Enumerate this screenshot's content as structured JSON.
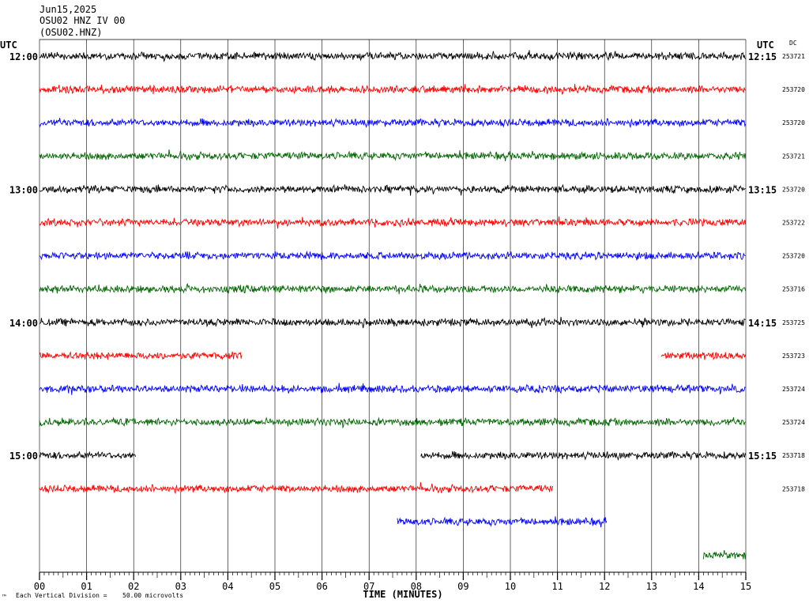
{
  "header": {
    "date": "Jun15,2025",
    "station": "OSU02 HNZ IV 00",
    "channel": "(OSU02.HNZ)"
  },
  "labels": {
    "utc_left": "UTC",
    "utc_right": "UTC",
    "dc": "DC",
    "time_axis": "TIME (MINUTES)",
    "division": "Each Vertical Division =",
    "division_value": "50.00 microvolts",
    "corner_mark": "™"
  },
  "colors": {
    "cycle": [
      "#000000",
      "#ff0000",
      "#0000ff",
      "#006600"
    ],
    "grid": "#000000"
  },
  "chart_data": {
    "type": "line",
    "title": "",
    "xlabel": "TIME (MINUTES)",
    "ylabel": "",
    "xlim": [
      0,
      15
    ],
    "x_ticks": [
      "00",
      "01",
      "02",
      "03",
      "04",
      "05",
      "06",
      "07",
      "08",
      "09",
      "10",
      "11",
      "12",
      "13",
      "14",
      "15"
    ],
    "row_minutes": 15,
    "traces": [
      {
        "left": "12:00",
        "right": "12:15",
        "dc": "253721",
        "color": "#000000",
        "segments": [
          [
            0,
            15
          ]
        ]
      },
      {
        "left": "",
        "right": "",
        "dc": "253720",
        "color": "#ff0000",
        "segments": [
          [
            0,
            15
          ]
        ]
      },
      {
        "left": "",
        "right": "",
        "dc": "253720",
        "color": "#0000ff",
        "segments": [
          [
            0,
            15
          ]
        ]
      },
      {
        "left": "",
        "right": "",
        "dc": "253721",
        "color": "#006600",
        "segments": [
          [
            0,
            15
          ]
        ]
      },
      {
        "left": "13:00",
        "right": "13:15",
        "dc": "253720",
        "color": "#000000",
        "segments": [
          [
            0,
            15
          ]
        ]
      },
      {
        "left": "",
        "right": "",
        "dc": "253722",
        "color": "#ff0000",
        "segments": [
          [
            0,
            15
          ]
        ]
      },
      {
        "left": "",
        "right": "",
        "dc": "253720",
        "color": "#0000ff",
        "segments": [
          [
            0,
            15
          ]
        ]
      },
      {
        "left": "",
        "right": "",
        "dc": "253716",
        "color": "#006600",
        "segments": [
          [
            0,
            15
          ]
        ]
      },
      {
        "left": "14:00",
        "right": "14:15",
        "dc": "253725",
        "color": "#000000",
        "segments": [
          [
            0,
            15
          ]
        ]
      },
      {
        "left": "",
        "right": "",
        "dc": "253723",
        "color": "#ff0000",
        "segments": [
          [
            0,
            4.3
          ],
          [
            13.2,
            15
          ]
        ]
      },
      {
        "left": "",
        "right": "",
        "dc": "253724",
        "color": "#0000ff",
        "segments": [
          [
            0,
            15
          ]
        ]
      },
      {
        "left": "",
        "right": "",
        "dc": "253724",
        "color": "#006600",
        "segments": [
          [
            0,
            15
          ]
        ]
      },
      {
        "left": "15:00",
        "right": "15:15",
        "dc": "253718",
        "color": "#000000",
        "segments": [
          [
            0,
            2.05
          ],
          [
            8.1,
            15
          ]
        ]
      },
      {
        "left": "",
        "right": "",
        "dc": "253718",
        "color": "#ff0000",
        "segments": [
          [
            0,
            10.9
          ]
        ]
      },
      {
        "left": "",
        "right": "",
        "dc": "",
        "color": "#0000ff",
        "segments": [
          [
            7.6,
            12.05
          ]
        ]
      },
      {
        "left": "",
        "right": "",
        "dc": "",
        "color": "#006600",
        "segments": [
          [
            14.1,
            15
          ]
        ]
      }
    ]
  }
}
